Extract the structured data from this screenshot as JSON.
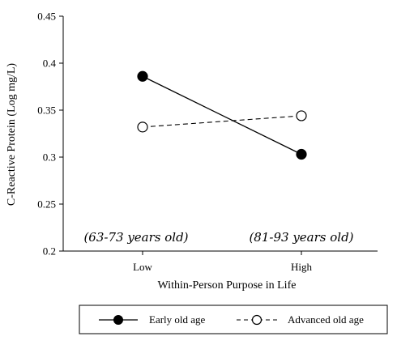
{
  "chart_data": {
    "type": "line",
    "categories": [
      "Low",
      "High"
    ],
    "series": [
      {
        "name": "Early old age",
        "values": [
          0.386,
          0.303
        ],
        "style": "solid",
        "marker": "filled-circle"
      },
      {
        "name": "Advanced old age",
        "values": [
          0.332,
          0.344
        ],
        "style": "dashed",
        "marker": "open-circle"
      }
    ],
    "xlabel": "Within-Person Purpose in Life",
    "ylabel": "C-Reactive Protein (Log mg/L)",
    "ylim": [
      0.2,
      0.45
    ],
    "yticks": [
      "0.2",
      "0.25",
      "0.3",
      "0.35",
      "0.4",
      "0.45"
    ],
    "annotations": [
      "(63-73 years old)",
      "(81-93 years old)"
    ],
    "legend_position": "bottom",
    "grid": false,
    "colors": {
      "line": "#000000",
      "marker_fill_filled": "#000000",
      "marker_fill_open": "#ffffff"
    }
  }
}
